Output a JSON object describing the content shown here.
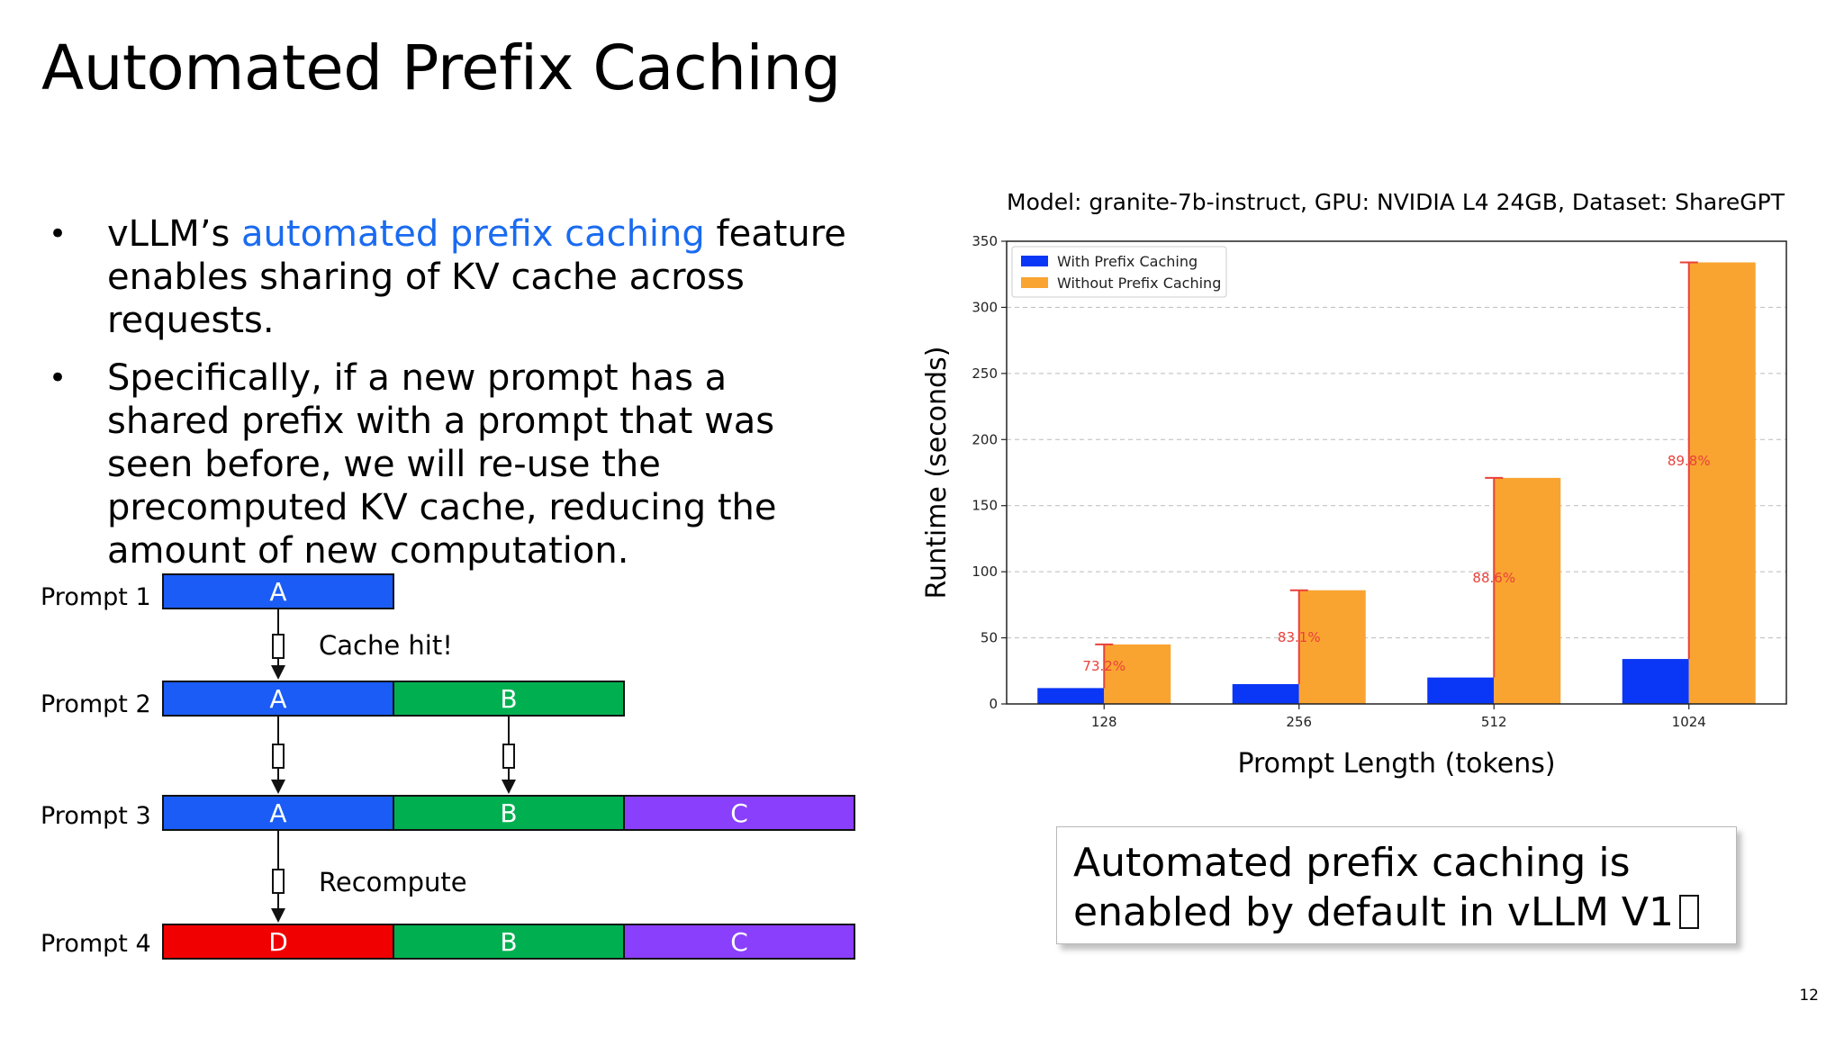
{
  "title": "Automated Prefix Caching",
  "bullets": [
    {
      "pre": "vLLM’s ",
      "highlight": "automated prefix caching",
      "post": " feature enables sharing of KV cache across requests."
    },
    {
      "text": "Specifically, if a new prompt has a shared prefix with a prompt that was seen before, we will re-use the precomputed KV cache, reducing the amount of new computation."
    }
  ],
  "diagram": {
    "prompts": [
      "Prompt 1",
      "Prompt 2",
      "Prompt 3",
      "Prompt 4"
    ],
    "segments": {
      "a": "A",
      "b": "B",
      "c": "C",
      "d": "D"
    },
    "notes": {
      "cache_hit": "Cache hit!",
      "recompute": "Recompute"
    },
    "colors": {
      "A": "#1a5cf5",
      "B": "#00b050",
      "C": "#8a3ffc",
      "D": "#f00000"
    }
  },
  "chart_title": "Model: granite-7b-instruct, GPU: NVIDIA L4 24GB, Dataset: ShareGPT",
  "chart_data": {
    "type": "bar",
    "categories": [
      "128",
      "256",
      "512",
      "1024"
    ],
    "series": [
      {
        "name": "With Prefix Caching",
        "values": [
          12,
          15,
          20,
          34
        ],
        "color": "#0a36f5"
      },
      {
        "name": "Without Prefix Caching",
        "values": [
          45,
          86,
          171,
          334
        ],
        "color": "#f9a431"
      }
    ],
    "annotations": [
      "73.2%",
      "83.1%",
      "88.6%",
      "89.8%"
    ],
    "xlabel": "Prompt Length (tokens)",
    "ylabel": "Runtime (seconds)",
    "ylim": [
      0,
      350
    ],
    "yticks": [
      0,
      50,
      100,
      150,
      200,
      250,
      300,
      350
    ],
    "grid": true,
    "legend": "top-left"
  },
  "callout": "Automated prefix caching is enabled by default in vLLM V1",
  "page_number": "12"
}
